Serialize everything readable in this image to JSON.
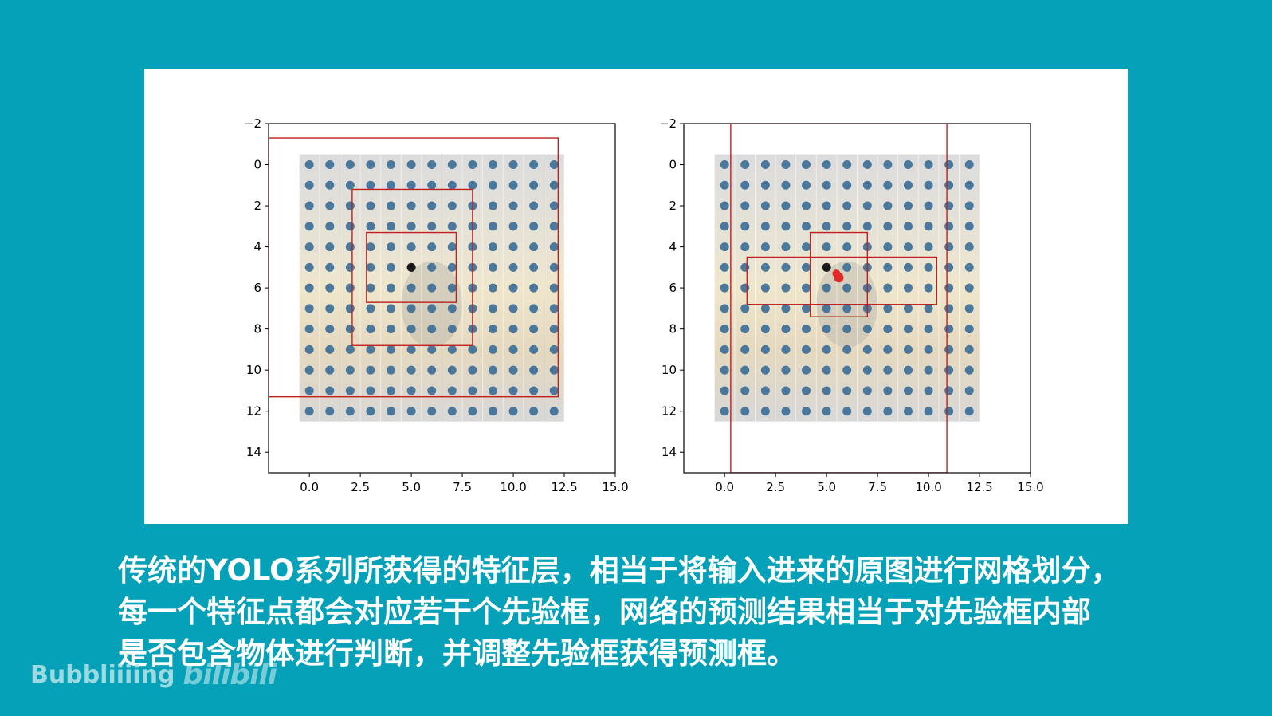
{
  "caption": {
    "line1": "传统的YOLO系列所获得的特征层，相当于将输入进来的原图进行网格划分，",
    "line2": "每一个特征点都会对应若干个先验框，网络的预测结果相当于对先验框内部",
    "line3": "是否包含物体进行判断，并调整先验框获得预测框。"
  },
  "watermark": {
    "author": "Bubbliiiing",
    "logo_text": "bilibili"
  },
  "colors": {
    "background": "#04a1b8",
    "point": "#3a6d96",
    "box": "#c0201e",
    "center": "#1a1a1a",
    "pred": "#e02a2a"
  },
  "chart_data": [
    {
      "type": "scatter",
      "xlim": [
        -2,
        15
      ],
      "ylim": [
        15,
        -2
      ],
      "y_inverted": true,
      "x_ticks": [
        "0.0",
        "2.5",
        "5.0",
        "7.5",
        "10.0",
        "12.5",
        "15.0"
      ],
      "y_ticks": [
        "−2",
        "0",
        "2",
        "4",
        "6",
        "8",
        "10",
        "12",
        "14"
      ],
      "grid_points": {
        "x_start": 0,
        "x_end": 12,
        "y_start": 0,
        "y_end": 12,
        "step": 1
      },
      "background_image": {
        "x": [
          -0.5,
          12.5
        ],
        "y": [
          -0.5,
          12.5
        ]
      },
      "center_point": [
        5,
        5
      ],
      "boxes": [
        {
          "x0": 2.1,
          "y0": 1.2,
          "x1": 8.0,
          "y1": 8.8
        },
        {
          "x0": 2.8,
          "y0": 3.3,
          "x1": 7.2,
          "y1": 6.7
        },
        {
          "x0": -2.0,
          "y0": -1.3,
          "x1": 12.2,
          "y1": 11.3
        }
      ]
    },
    {
      "type": "scatter",
      "xlim": [
        -2,
        15
      ],
      "ylim": [
        15,
        -2
      ],
      "y_inverted": true,
      "x_ticks": [
        "0.0",
        "2.5",
        "5.0",
        "7.5",
        "10.0",
        "12.5",
        "15.0"
      ],
      "y_ticks": [
        "−2",
        "0",
        "2",
        "4",
        "6",
        "8",
        "10",
        "12",
        "14"
      ],
      "grid_points": {
        "x_start": 0,
        "x_end": 12,
        "y_start": 0,
        "y_end": 12,
        "step": 1
      },
      "background_image": {
        "x": [
          -0.5,
          12.5
        ],
        "y": [
          -0.5,
          12.5
        ]
      },
      "center_point": [
        5,
        5
      ],
      "pred_point": [
        5.6,
        5.5
      ],
      "boxes": [
        {
          "x0": 1.1,
          "y0": 4.5,
          "x1": 10.4,
          "y1": 6.8
        },
        {
          "x0": 4.2,
          "y0": 3.3,
          "x1": 7.0,
          "y1": 7.4
        },
        {
          "x0": 0.3,
          "y0": -2.0,
          "x1": 10.9,
          "y1": 15.0
        }
      ]
    }
  ]
}
